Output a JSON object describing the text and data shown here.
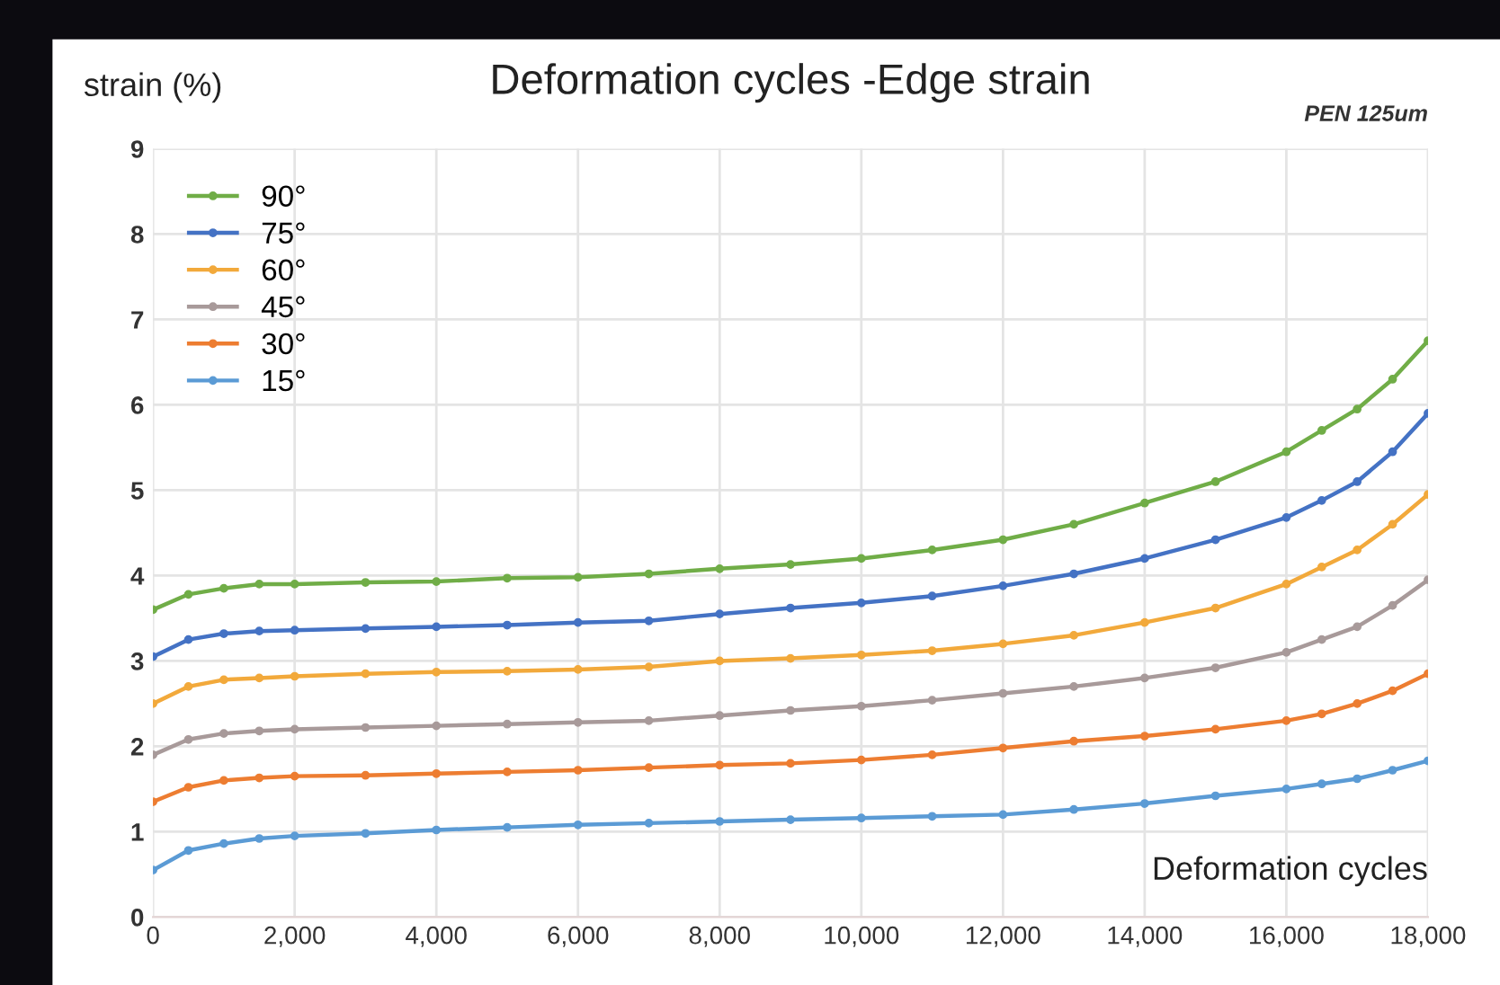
{
  "chart_data": {
    "type": "line",
    "title": "Deformation cycles -Edge strain",
    "xlabel": "Deformation cycles",
    "ylabel": "strain (%)",
    "annotations": [
      "PEN 125um"
    ],
    "x": [
      0,
      500,
      1000,
      1500,
      2000,
      3000,
      4000,
      5000,
      6000,
      7000,
      8000,
      9000,
      10000,
      11000,
      12000,
      13000,
      14000,
      15000,
      16000,
      16500,
      17000,
      17500,
      18000
    ],
    "series": [
      {
        "name": "90°",
        "color": "#70ad47",
        "values": [
          3.6,
          3.78,
          3.85,
          3.9,
          3.9,
          3.92,
          3.93,
          3.97,
          3.98,
          4.02,
          4.08,
          4.13,
          4.2,
          4.3,
          4.42,
          4.6,
          4.85,
          5.1,
          5.45,
          5.7,
          5.95,
          6.3,
          6.75
        ]
      },
      {
        "name": "75°",
        "color": "#4472c4",
        "values": [
          3.05,
          3.25,
          3.32,
          3.35,
          3.36,
          3.38,
          3.4,
          3.42,
          3.45,
          3.47,
          3.55,
          3.62,
          3.68,
          3.76,
          3.88,
          4.02,
          4.2,
          4.42,
          4.68,
          4.88,
          5.1,
          5.45,
          5.9
        ]
      },
      {
        "name": "60°",
        "color": "#f2a93b",
        "values": [
          2.5,
          2.7,
          2.78,
          2.8,
          2.82,
          2.85,
          2.87,
          2.88,
          2.9,
          2.93,
          3.0,
          3.03,
          3.07,
          3.12,
          3.2,
          3.3,
          3.45,
          3.62,
          3.9,
          4.1,
          4.3,
          4.6,
          4.95
        ]
      },
      {
        "name": "45°",
        "color": "#a89a9a",
        "values": [
          1.9,
          2.08,
          2.15,
          2.18,
          2.2,
          2.22,
          2.24,
          2.26,
          2.28,
          2.3,
          2.36,
          2.42,
          2.47,
          2.54,
          2.62,
          2.7,
          2.8,
          2.92,
          3.1,
          3.25,
          3.4,
          3.65,
          3.95
        ]
      },
      {
        "name": "30°",
        "color": "#ed7d31",
        "values": [
          1.35,
          1.52,
          1.6,
          1.63,
          1.65,
          1.66,
          1.68,
          1.7,
          1.72,
          1.75,
          1.78,
          1.8,
          1.84,
          1.9,
          1.98,
          2.06,
          2.12,
          2.2,
          2.3,
          2.38,
          2.5,
          2.65,
          2.85
        ]
      },
      {
        "name": "15°",
        "color": "#5b9bd5",
        "values": [
          0.55,
          0.78,
          0.86,
          0.92,
          0.95,
          0.98,
          1.02,
          1.05,
          1.08,
          1.1,
          1.12,
          1.14,
          1.16,
          1.18,
          1.2,
          1.26,
          1.33,
          1.42,
          1.5,
          1.56,
          1.62,
          1.72,
          1.83
        ]
      }
    ],
    "xlim": [
      0,
      18000
    ],
    "xticks": [
      {
        "value": 0,
        "label": "0"
      },
      {
        "value": 2000,
        "label": "2,000"
      },
      {
        "value": 4000,
        "label": "4,000"
      },
      {
        "value": 6000,
        "label": "6,000"
      },
      {
        "value": 8000,
        "label": "8,000"
      },
      {
        "value": 10000,
        "label": "10,000"
      },
      {
        "value": 12000,
        "label": "12,000"
      },
      {
        "value": 14000,
        "label": "14,000"
      },
      {
        "value": 16000,
        "label": "16,000"
      },
      {
        "value": 18000,
        "label": "18,000"
      }
    ],
    "ylim": [
      0,
      9
    ],
    "yticks": [
      0,
      1,
      2,
      3,
      4,
      5,
      6,
      7,
      8,
      9
    ],
    "grid": true,
    "legend": "top left",
    "marker": "circle",
    "line_style": "solid"
  }
}
